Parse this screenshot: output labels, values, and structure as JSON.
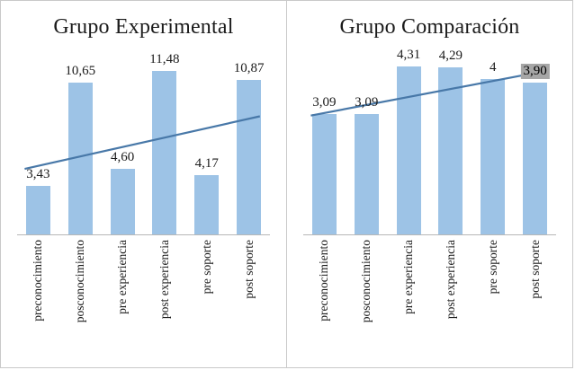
{
  "colors": {
    "bar": "#9dc3e6",
    "trend_line": "#4878a8",
    "highlight_bg": "#a6a6a6",
    "text": "#1b1b1b",
    "frame_border": "#c9c9c9",
    "axis_line": "#b7b7b7"
  },
  "chart_data": [
    {
      "type": "bar",
      "title": "Grupo Experimental",
      "categories": [
        "preconocimiento",
        "posconocimiento",
        "pre experiencia",
        "post experiencia",
        "pre soporte",
        "post soporte"
      ],
      "values": [
        3.43,
        10.65,
        4.6,
        11.48,
        4.17,
        10.87
      ],
      "value_labels": [
        "3,43",
        "10,65",
        "4,60",
        "11,48",
        "4,17",
        "10,87"
      ],
      "ylim": [
        0,
        13
      ],
      "grid": false,
      "legend": "none",
      "trendline": {
        "type": "linear",
        "start": 4.6,
        "end": 8.3
      }
    },
    {
      "type": "bar",
      "title": "Grupo Comparación",
      "categories": [
        "preconocimiento",
        "posconocimiento",
        "pre experiencia",
        "post experiencia",
        "pre soporte",
        "post soporte"
      ],
      "values": [
        3.09,
        3.09,
        4.31,
        4.29,
        4,
        3.9
      ],
      "value_labels": [
        "3,09",
        "3,09",
        "4,31",
        "4,29",
        "4",
        "3,90"
      ],
      "highlighted_label": {
        "index": 5,
        "bg": "#a6a6a6"
      },
      "ylim": [
        0,
        4.75
      ],
      "grid": false,
      "legend": "none",
      "trendline": {
        "type": "linear",
        "start": 3.05,
        "end": 4.2
      }
    }
  ]
}
